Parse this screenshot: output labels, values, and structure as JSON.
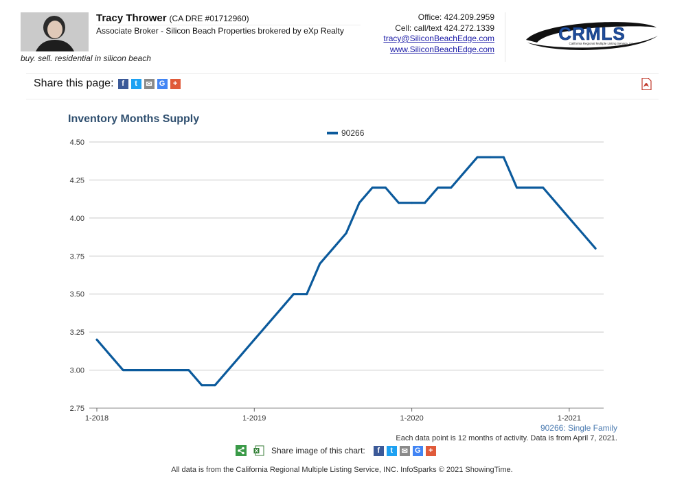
{
  "agent": {
    "name": "Tracy Thrower",
    "dre": "(CA DRE #01712960)",
    "title": "Associate Broker - Silicon Beach Properties brokered by eXp Realty",
    "tagline": "buy. sell. residential in silicon beach",
    "office": "Office: 424.209.2959",
    "cell": "Cell: call/text 424.272.1339",
    "email": "tracy@SiliconBeachEdge.com",
    "website": "www.SiliconBeachEdge.com"
  },
  "logo": {
    "text": "CRMLS",
    "subtext": "California Regional Multiple Listing Service, Inc."
  },
  "share": {
    "label": "Share this page:",
    "chart_label": "Share image of this chart:",
    "buttons": [
      "f",
      "t",
      "✉",
      "G",
      "+"
    ]
  },
  "colors": {
    "series": "#0b5a9c",
    "title": "#2f4f6f",
    "facebook": "#3b5998",
    "twitter": "#1da1f2",
    "email": "#8a8a8a",
    "google": "#4285f4",
    "more": "#e05a3a"
  },
  "chart_data": {
    "type": "line",
    "title": "Inventory Months Supply",
    "series": [
      {
        "name": "90266",
        "x": [
          "2018-01",
          "2018-02",
          "2018-03",
          "2018-04",
          "2018-05",
          "2018-06",
          "2018-07",
          "2018-08",
          "2018-09",
          "2018-10",
          "2018-11",
          "2018-12",
          "2019-01",
          "2019-02",
          "2019-03",
          "2019-04",
          "2019-05",
          "2019-06",
          "2019-07",
          "2019-08",
          "2019-09",
          "2019-10",
          "2019-11",
          "2019-12",
          "2020-01",
          "2020-02",
          "2020-03",
          "2020-04",
          "2020-05",
          "2020-06",
          "2020-07",
          "2020-08",
          "2020-09",
          "2020-10",
          "2020-11",
          "2020-12",
          "2021-01",
          "2021-02",
          "2021-03"
        ],
        "values": [
          3.2,
          3.1,
          3.0,
          3.0,
          3.0,
          3.0,
          3.0,
          3.0,
          2.9,
          2.9,
          3.0,
          3.1,
          3.2,
          3.3,
          3.4,
          3.5,
          3.5,
          3.7,
          3.8,
          3.9,
          4.1,
          4.2,
          4.2,
          4.1,
          4.1,
          4.1,
          4.2,
          4.2,
          4.3,
          4.4,
          4.4,
          4.4,
          4.2,
          4.2,
          4.2,
          4.1,
          4.0,
          3.9,
          3.8
        ]
      }
    ],
    "y_ticks": [
      "2.75",
      "3.00",
      "3.25",
      "3.50",
      "3.75",
      "4.00",
      "4.25",
      "4.50"
    ],
    "ylim": [
      2.75,
      4.5
    ],
    "x_ticks": [
      "1-2018",
      "1-2019",
      "1-2020",
      "1-2021"
    ],
    "grid": true,
    "legend": "top-center",
    "series_caption": "90266: Single Family",
    "note": "Each data point is 12 months of activity. Data is from April 7, 2021."
  },
  "disclaimer": "All data is from the California Regional Multiple Listing Service, INC. InfoSparks © 2021 ShowingTime."
}
